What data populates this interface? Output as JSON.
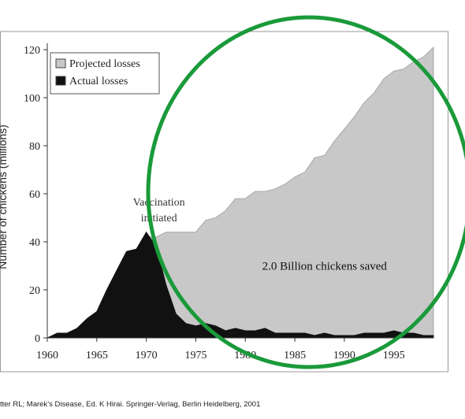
{
  "chart_data": {
    "type": "area",
    "title": "",
    "xlabel": "",
    "ylabel": "Number of chickens (millions)",
    "xlim": [
      1960,
      1999
    ],
    "ylim": [
      0,
      120
    ],
    "xticks": [
      1960,
      1965,
      1970,
      1975,
      1980,
      1985,
      1990,
      1995
    ],
    "yticks": [
      0,
      20,
      40,
      60,
      80,
      100,
      120
    ],
    "legend_position": "top-left",
    "series": [
      {
        "name": "Projected losses",
        "color": "#c8c8c8",
        "x": [
          1970,
          1971,
          1972,
          1973,
          1974,
          1975,
          1976,
          1977,
          1978,
          1979,
          1980,
          1981,
          1982,
          1983,
          1984,
          1985,
          1986,
          1987,
          1988,
          1989,
          1990,
          1991,
          1992,
          1993,
          1994,
          1995,
          1996,
          1997,
          1998,
          1999
        ],
        "values": [
          42,
          42,
          44,
          44,
          44,
          44,
          49,
          50,
          53,
          58,
          58,
          61,
          61,
          62,
          64,
          67,
          69,
          75,
          76,
          82,
          87,
          92,
          98,
          102,
          108,
          111,
          112,
          115,
          117,
          121
        ]
      },
      {
        "name": "Actual losses",
        "color": "#111111",
        "x": [
          1960,
          1961,
          1962,
          1963,
          1964,
          1965,
          1966,
          1967,
          1968,
          1969,
          1970,
          1971,
          1972,
          1973,
          1974,
          1975,
          1976,
          1977,
          1978,
          1979,
          1980,
          1981,
          1982,
          1983,
          1984,
          1985,
          1986,
          1987,
          1988,
          1989,
          1990,
          1991,
          1992,
          1993,
          1994,
          1995,
          1996,
          1997,
          1998,
          1999
        ],
        "values": [
          0,
          2,
          2,
          4,
          8,
          11,
          20,
          28,
          36,
          37,
          44,
          38,
          22,
          10,
          6,
          5,
          6,
          5,
          3,
          4,
          3,
          3,
          4,
          2,
          2,
          2,
          2,
          1,
          2,
          1,
          1,
          1,
          2,
          2,
          2,
          3,
          2,
          2,
          1,
          1
        ]
      }
    ],
    "annotations": [
      {
        "text": "Vaccination initiated",
        "lines": [
          "Vaccination",
          "initiated"
        ],
        "x": 1970,
        "y": 58
      },
      {
        "text": "2.0 Billion chickens saved",
        "x": 1988,
        "y": 30
      }
    ],
    "overlay_color": "#1a9a3a"
  },
  "citation": "tter RL; Marek’s Disease, Ed. K Hirai. Springer-Verlag, Berlin Heidelberg, 2001"
}
